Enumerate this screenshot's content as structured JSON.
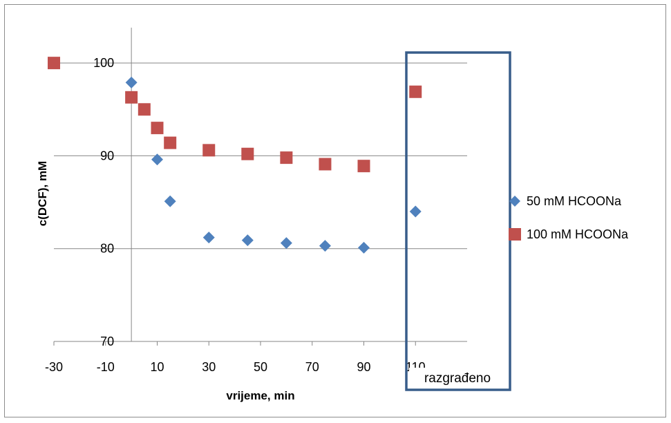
{
  "chart_data": {
    "type": "scatter",
    "title": "",
    "xlabel": "vrijeme, min",
    "ylabel": "c(DCF), mM",
    "xlim": [
      -30,
      130
    ],
    "ylim": [
      70,
      105
    ],
    "x_ticks": [
      -30,
      -10,
      10,
      30,
      50,
      70,
      90,
      110
    ],
    "x_tick_labels": [
      "-30",
      "-10",
      "10",
      "30",
      "50",
      "70",
      "90",
      "110"
    ],
    "y_ticks": [
      70,
      80,
      90,
      100
    ],
    "y_tick_labels": [
      "70",
      "80",
      "90",
      "100"
    ],
    "grid": "horizontal",
    "legend_position": "right",
    "series": [
      {
        "name": "50 mM HCOONa",
        "marker": "diamond",
        "color": "#4F81BD",
        "points": [
          [
            0,
            97.9
          ],
          [
            10,
            89.6
          ],
          [
            15,
            85.1
          ],
          [
            30,
            81.2
          ],
          [
            45,
            80.9
          ],
          [
            60,
            80.6
          ],
          [
            75,
            80.3
          ],
          [
            90,
            80.1
          ],
          [
            110,
            84.0
          ]
        ]
      },
      {
        "name": "100 mM HCOONa",
        "marker": "square",
        "color": "#C0504D",
        "points": [
          [
            -30,
            100
          ],
          [
            0,
            96.3
          ],
          [
            5,
            95.0
          ],
          [
            10,
            93.0
          ],
          [
            15,
            91.4
          ],
          [
            30,
            90.6
          ],
          [
            45,
            90.2
          ],
          [
            60,
            89.8
          ],
          [
            75,
            89.1
          ],
          [
            90,
            88.9
          ],
          [
            110,
            96.9
          ]
        ]
      }
    ],
    "annotation": {
      "label": "razgrađeno",
      "box_color": "#385D8A"
    }
  }
}
